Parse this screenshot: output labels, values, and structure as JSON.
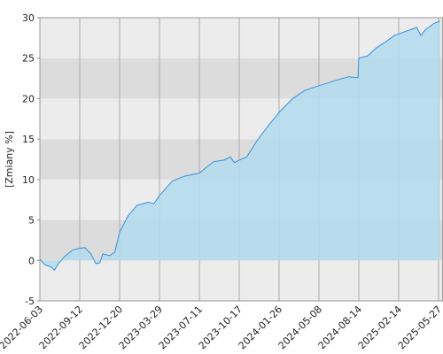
{
  "chart_data": {
    "type": "area",
    "y_label": "[Zmiany %]",
    "x": [
      "2022-06-03",
      "2022-06-15",
      "2022-07-01",
      "2022-07-10",
      "2022-07-20",
      "2022-08-05",
      "2022-08-25",
      "2022-09-12",
      "2022-09-25",
      "2022-10-10",
      "2022-10-22",
      "2022-11-01",
      "2022-11-08",
      "2022-11-25",
      "2022-12-08",
      "2022-12-20",
      "2023-01-10",
      "2023-02-01",
      "2023-03-01",
      "2023-03-15",
      "2023-03-29",
      "2023-05-01",
      "2023-06-01",
      "2023-07-11",
      "2023-08-15",
      "2023-09-10",
      "2023-09-25",
      "2023-10-05",
      "2023-10-17",
      "2023-11-05",
      "2023-12-01",
      "2024-01-01",
      "2024-01-26",
      "2024-03-01",
      "2024-04-01",
      "2024-05-08",
      "2024-06-15",
      "2024-07-20",
      "2024-08-12",
      "2024-08-14",
      "2024-09-24",
      "2024-11-04",
      "2024-12-15",
      "2025-01-25",
      "2025-02-14",
      "2025-03-09",
      "2025-04-01",
      "2025-04-12",
      "2025-04-23",
      "2025-05-15",
      "2025-05-31"
    ],
    "values": [
      0.2,
      -0.5,
      -0.8,
      -1.2,
      -0.4,
      0.5,
      1.3,
      1.5,
      1.6,
      0.8,
      -0.4,
      -0.3,
      0.8,
      0.6,
      1.0,
      3.5,
      5.5,
      6.8,
      7.2,
      7.0,
      8.0,
      9.8,
      10.4,
      10.8,
      12.2,
      12.4,
      12.8,
      12.1,
      12.4,
      12.8,
      14.8,
      16.8,
      18.3,
      20.0,
      21.0,
      21.6,
      22.2,
      22.7,
      22.6,
      25.0,
      25.3,
      26.3,
      27.0,
      27.8,
      28.0,
      28.4,
      28.8,
      27.8,
      28.5,
      29.3,
      29.6
    ],
    "color": "#3a8fd8",
    "fill": "#b3dcef",
    "xlim": [
      "2022-06-03",
      "2025-06-06"
    ],
    "xticks": [
      "2022-06-03",
      "2022-09-12",
      "2022-12-20",
      "2023-03-29",
      "2023-07-11",
      "2023-10-17",
      "2024-01-26",
      "2024-05-08",
      "2024-08-14",
      "2025-02-14",
      "2025-05-27"
    ],
    "ylim": [
      -5,
      30
    ],
    "yticks": [
      -5,
      0,
      5,
      10,
      15,
      20,
      25,
      30
    ],
    "grid": true
  }
}
